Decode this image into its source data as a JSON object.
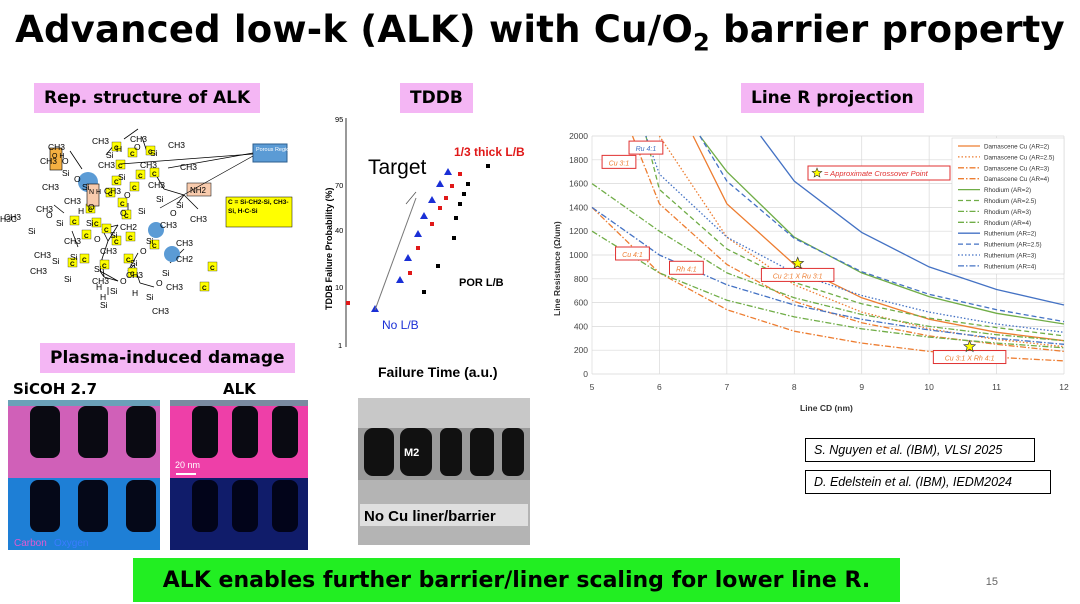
{
  "slide": {
    "title_main": "Advanced low-k (ALK) with Cu/O",
    "title_sub": "2",
    "title_end": " barrier property",
    "footer": "ALK enables further barrier/liner scaling for lower line R.",
    "page_number": "15"
  },
  "labels": {
    "rep_structure": "Rep. structure of ALK",
    "tddb": "TDDB",
    "line_r": "Line R projection",
    "plasma": "Plasma-induced damage",
    "sicoh": "SiCOH 2.7",
    "alk": "ALK"
  },
  "structure": {
    "atoms": [
      "CH3",
      "CH3",
      "CH3",
      "CH3",
      "CH3",
      "CH3",
      "CH3",
      "CH3",
      "CH3",
      "CH3",
      "CH3",
      "CH3",
      "CH3",
      "CH3",
      "CH3",
      "CH3",
      "CH3",
      "CH3",
      "CH3",
      "CH3",
      "CH3",
      "CH3",
      "CH3",
      "CH3",
      "CH3",
      "CH2",
      "CH2",
      "Si",
      "Si",
      "Si",
      "Si",
      "Si",
      "Si",
      "Si",
      "Si",
      "Si",
      "Si",
      "Si",
      "Si",
      "Si",
      "Si",
      "Si",
      "Si",
      "Si",
      "Si",
      "Si",
      "Si",
      "Si",
      "Si",
      "O",
      "O",
      "O",
      "O",
      "O",
      "O",
      "O",
      "O",
      "O",
      "O",
      "O",
      "O",
      "H",
      "H",
      "H",
      "H",
      "H",
      "H3C"
    ],
    "porous_region": "Porous Region",
    "nh_label": "NH2",
    "oh_label": "O H",
    "nh_box": "N H",
    "c_box": "C",
    "legend": "C = Si-CH2-Si, CH3-Si, H-C-Si"
  },
  "tddb": {
    "ylabel": "TDDB Failure Probability (%)",
    "xlabel": "Failure Time (a.u.)",
    "y_ticks": [
      "95",
      "70",
      "40",
      "10",
      "1"
    ],
    "target": "Target",
    "thick_label": "1/3 thick L/B",
    "por_label": "POR L/B",
    "no_label": "No L/B",
    "series_colors": {
      "no_lb": "#1a2fd6",
      "por": "#000000",
      "thick": "#e01818"
    }
  },
  "chart_data": {
    "type": "line",
    "xlabel": "Line CD (nm)",
    "ylabel": "Line Resistance (Ω/um)",
    "xlim": [
      5,
      12
    ],
    "ylim": [
      0,
      2000
    ],
    "x_ticks": [
      5,
      6,
      7,
      8,
      9,
      10,
      11,
      12
    ],
    "y_ticks": [
      0,
      200,
      400,
      600,
      800,
      1000,
      1200,
      1400,
      1600,
      1800,
      2000
    ],
    "grid": true,
    "legend_position": "top-right",
    "series": [
      {
        "name": "Damascene Cu (AR=2)",
        "color": "#ed7d31",
        "dash": "solid",
        "points": [
          [
            6.5,
            2000
          ],
          [
            7,
            1430
          ],
          [
            8,
            920
          ],
          [
            9,
            640
          ],
          [
            10,
            460
          ],
          [
            11,
            350
          ],
          [
            12,
            280
          ]
        ]
      },
      {
        "name": "Damascene Cu (AR=2.5)",
        "color": "#ed7d31",
        "dash": "dot",
        "points": [
          [
            6,
            2000
          ],
          [
            7,
            1150
          ],
          [
            8,
            750
          ],
          [
            9,
            520
          ],
          [
            10,
            380
          ],
          [
            11,
            290
          ],
          [
            12,
            230
          ]
        ]
      },
      {
        "name": "Damascene Cu (AR=3)",
        "color": "#ed7d31",
        "dash": "dashdot",
        "points": [
          [
            5.6,
            2000
          ],
          [
            6,
            1430
          ],
          [
            7,
            920
          ],
          [
            8,
            610
          ],
          [
            9,
            430
          ],
          [
            10,
            320
          ],
          [
            11,
            250
          ],
          [
            12,
            190
          ]
        ]
      },
      {
        "name": "Damascene Cu (AR=4)",
        "color": "#ed7d31",
        "dash": "dashdot",
        "points": [
          [
            5,
            1400
          ],
          [
            6,
            850
          ],
          [
            7,
            540
          ],
          [
            8,
            360
          ],
          [
            9,
            260
          ],
          [
            10,
            190
          ],
          [
            11,
            140
          ],
          [
            12,
            110
          ]
        ]
      },
      {
        "name": "Rhodium (AR=2)",
        "color": "#70ad47",
        "dash": "solid",
        "points": [
          [
            6.6,
            2000
          ],
          [
            7,
            1700
          ],
          [
            8,
            1150
          ],
          [
            9,
            850
          ],
          [
            10,
            650
          ],
          [
            11,
            510
          ],
          [
            12,
            420
          ]
        ]
      },
      {
        "name": "Rhodium (AR=2.5)",
        "color": "#70ad47",
        "dash": "dash",
        "points": [
          [
            5.8,
            2000
          ],
          [
            6,
            1550
          ],
          [
            7,
            1050
          ],
          [
            8,
            770
          ],
          [
            9,
            590
          ],
          [
            10,
            470
          ],
          [
            11,
            390
          ],
          [
            12,
            320
          ]
        ]
      },
      {
        "name": "Rhodium (AR=3)",
        "color": "#70ad47",
        "dash": "dashdot",
        "points": [
          [
            5,
            1600
          ],
          [
            6,
            1200
          ],
          [
            7,
            850
          ],
          [
            8,
            640
          ],
          [
            9,
            500
          ],
          [
            10,
            400
          ],
          [
            11,
            330
          ],
          [
            12,
            280
          ]
        ]
      },
      {
        "name": "Rhodium (AR=4)",
        "color": "#70ad47",
        "dash": "dashdot",
        "points": [
          [
            5,
            1200
          ],
          [
            6,
            850
          ],
          [
            7,
            620
          ],
          [
            8,
            480
          ],
          [
            9,
            380
          ],
          [
            10,
            310
          ],
          [
            11,
            260
          ],
          [
            12,
            220
          ]
        ]
      },
      {
        "name": "Ruthenium (AR=2)",
        "color": "#4472c4",
        "dash": "solid",
        "points": [
          [
            7.5,
            2000
          ],
          [
            8,
            1620
          ],
          [
            9,
            1190
          ],
          [
            10,
            900
          ],
          [
            11,
            710
          ],
          [
            12,
            580
          ]
        ]
      },
      {
        "name": "Ruthenium (AR=2.5)",
        "color": "#4472c4",
        "dash": "dash",
        "points": [
          [
            6.6,
            2000
          ],
          [
            7,
            1620
          ],
          [
            8,
            1140
          ],
          [
            9,
            860
          ],
          [
            10,
            670
          ],
          [
            11,
            540
          ],
          [
            12,
            440
          ]
        ]
      },
      {
        "name": "Ruthenium (AR=3)",
        "color": "#4472c4",
        "dash": "dot",
        "points": [
          [
            5.8,
            2000
          ],
          [
            6,
            1680
          ],
          [
            7,
            1150
          ],
          [
            8,
            850
          ],
          [
            9,
            660
          ],
          [
            10,
            520
          ],
          [
            11,
            420
          ],
          [
            12,
            350
          ]
        ]
      },
      {
        "name": "Ruthenium (AR=4)",
        "color": "#4472c4",
        "dash": "dashdot",
        "points": [
          [
            5,
            1400
          ],
          [
            6,
            1000
          ],
          [
            7,
            750
          ],
          [
            8,
            580
          ],
          [
            9,
            460
          ],
          [
            10,
            370
          ],
          [
            11,
            300
          ],
          [
            12,
            250
          ]
        ]
      }
    ],
    "annotations": [
      {
        "text": "= Approximate Crossover Point",
        "kind": "legend-star"
      },
      {
        "text": "Ru 4:1",
        "x": 5.8,
        "y": 1890,
        "color": "#4472c4"
      },
      {
        "text": "Cu 3:1",
        "x": 5.4,
        "y": 1770,
        "color": "#ed7d31"
      },
      {
        "text": "Cu 4:1",
        "x": 5.6,
        "y": 1000,
        "color": "#ed7d31"
      },
      {
        "text": "Rh 4:1",
        "x": 6.4,
        "y": 880,
        "color": "#ed7d31"
      },
      {
        "text": "Cu 2:1 X Ru 3:1",
        "x": 8.05,
        "y": 820,
        "color": "#ed7d31"
      },
      {
        "text": "Cu 3:1 X Rh 4:1",
        "x": 10.6,
        "y": 130,
        "color": "#ed7d31"
      }
    ],
    "crossover_points": [
      {
        "x": 8.05,
        "y": 930
      },
      {
        "x": 10.6,
        "y": 230
      }
    ]
  },
  "tem": {
    "scale_bar": "20 nm",
    "carbon": "Carbon",
    "oxygen": "Oxygen",
    "m2": "M2",
    "caption": "No Cu liner/barrier"
  },
  "references": [
    "S. Nguyen et al. (IBM),  VLSI 2025",
    "D. Edelstein et al. (IBM), IEDM2024"
  ]
}
